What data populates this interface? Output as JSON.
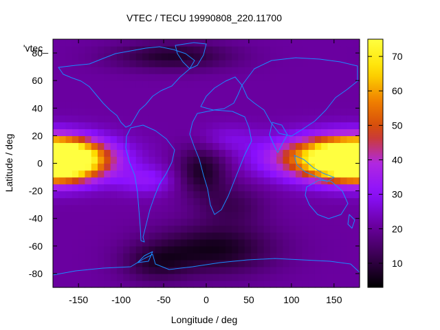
{
  "chart_data": {
    "type": "heatmap",
    "title": "VTEC / TECU 19990808_220.11700",
    "xlabel": "Longitude / deg",
    "ylabel": "Latitude / deg",
    "key_label": "'vtec_",
    "xlim": [
      -180,
      180
    ],
    "ylim": [
      -90,
      90
    ],
    "xticks": [
      -150,
      -100,
      -50,
      0,
      50,
      100,
      150
    ],
    "yticks": [
      -80,
      -60,
      -40,
      -20,
      0,
      20,
      40,
      60,
      80
    ],
    "colorbar": {
      "range": [
        3,
        75
      ],
      "ticks": [
        10,
        20,
        30,
        40,
        50,
        60,
        70
      ]
    },
    "grid": {
      "lon_step_deg": 7.5,
      "lat_step_deg": 5,
      "background_vtec": 21,
      "features": [
        {
          "name": "pacific-anomaly",
          "lon": -175,
          "lat": 2,
          "width_lon": 48,
          "width_lat": 14,
          "amplitude": 58
        },
        {
          "name": "asia-pacific-anomaly",
          "lon": 160,
          "lat": 4,
          "width_lon": 75,
          "width_lat": 15,
          "amplitude": 56
        },
        {
          "name": "atlantic-depletion",
          "lon": -5,
          "lat": -5,
          "width_lon": 30,
          "width_lat": 18,
          "amplitude": -14
        },
        {
          "name": "south-polar-low",
          "lon": 10,
          "lat": -62,
          "width_lon": 70,
          "width_lat": 18,
          "amplitude": -15
        },
        {
          "name": "southern-ocean-low",
          "lon": -60,
          "lat": -72,
          "width_lon": 40,
          "width_lat": 14,
          "amplitude": -10
        },
        {
          "name": "north-polar-low",
          "lon": -40,
          "lat": 78,
          "width_lon": 70,
          "width_lat": 10,
          "amplitude": -13
        },
        {
          "name": "south-atlantic-low",
          "lon": 30,
          "lat": -30,
          "width_lon": 40,
          "width_lat": 15,
          "amplitude": -8
        },
        {
          "name": "american-crest",
          "lon": -70,
          "lat": -12,
          "width_lon": 35,
          "width_lat": 10,
          "amplitude": 10
        },
        {
          "name": "african-crest",
          "lon": 25,
          "lat": 18,
          "width_lon": 35,
          "width_lat": 10,
          "amplitude": 6
        }
      ]
    },
    "coastline_color": "#1a8cff",
    "palette": [
      "#000000",
      "#3a0050",
      "#6a00a0",
      "#8a10ff",
      "#b028e0",
      "#d04010",
      "#f08000",
      "#ffe000",
      "#ffff40"
    ]
  }
}
